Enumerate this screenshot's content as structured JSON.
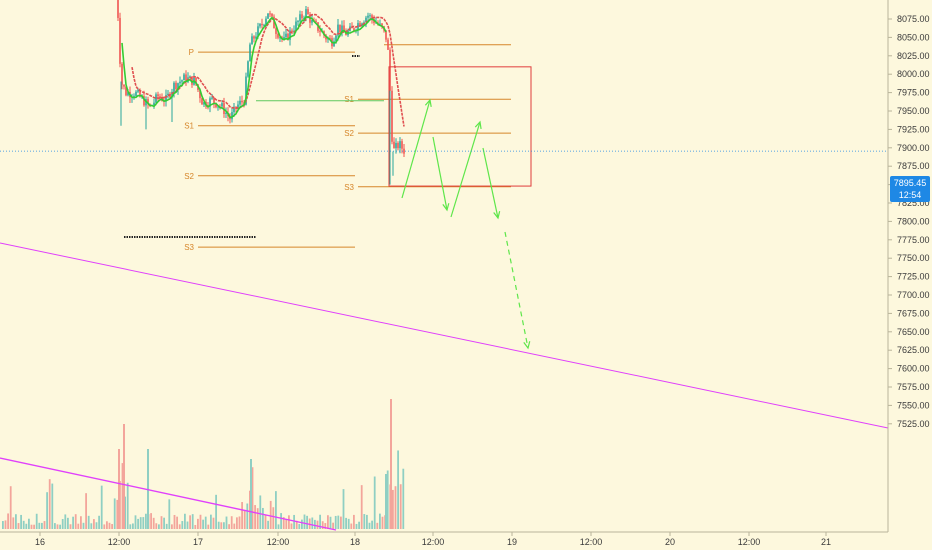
{
  "chart_data": {
    "type": "candlestick",
    "price_axis": {
      "ticks": [
        "8075.00",
        "8050.00",
        "8025.00",
        "8000.00",
        "7975.00",
        "7950.00",
        "7925.00",
        "7900.00",
        "7875.00",
        "7850.00",
        "7825.00",
        "7800.00",
        "7775.00",
        "7750.00",
        "7725.00",
        "7700.00",
        "7675.00",
        "7650.00",
        "7625.00",
        "7600.00",
        "7575.00",
        "7550.00",
        "7525.00"
      ],
      "range": [
        7515,
        8090
      ]
    },
    "time_axis": {
      "ticks": [
        "16",
        "12:00",
        "17",
        "12:00",
        "18",
        "12:00",
        "19",
        "12:00",
        "20",
        "12:00",
        "21"
      ]
    },
    "current_price": {
      "value": 7895.45,
      "label": "7895.45",
      "countdown": "12:54",
      "color": "#1e88e5"
    },
    "last_day_pivots": [
      {
        "name": "S1",
        "value": 7966
      },
      {
        "name": "S2",
        "value": 7920
      },
      {
        "name": "S3",
        "value": 7847
      }
    ],
    "prev_day_pivots": [
      {
        "name": "P",
        "value": 8030
      },
      {
        "name": "S1",
        "value": 7930
      },
      {
        "name": "S2",
        "value": 7862
      },
      {
        "name": "S3",
        "value": 7765
      }
    ],
    "box": {
      "top": 8010,
      "bottom": 7848,
      "color": "#e03c3c"
    },
    "trendline_color": "#e040fb",
    "projection_color": "#5ee64a",
    "colors": {
      "up": "#26a69a",
      "down": "#ef5350",
      "sma_red": "#e05050",
      "sma_green": "#33cc33",
      "pivot": "#d6862a",
      "volume_up": "#8fcfc3",
      "volume_down": "#f3a59b"
    }
  }
}
